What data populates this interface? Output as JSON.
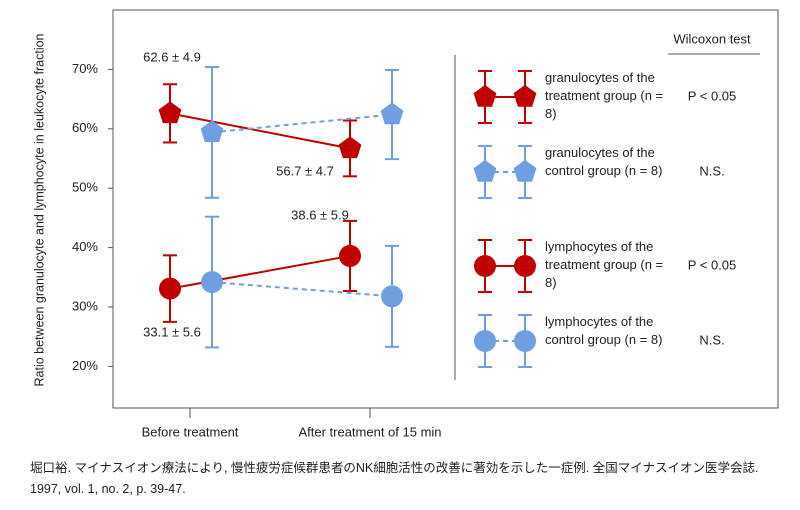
{
  "chart_data": {
    "type": "line",
    "ylabel": "Ratio between granulocyte and lymphocyte in leukocyte fraction",
    "categories": [
      "Before treatment",
      "After treatment of 15 min"
    ],
    "ylim": [
      13,
      80
    ],
    "yticks": [
      {
        "value": 20,
        "label": "20%"
      },
      {
        "value": 30,
        "label": "30%"
      },
      {
        "value": 40,
        "label": "40%"
      },
      {
        "value": 50,
        "label": "50%"
      },
      {
        "value": 60,
        "label": "60%"
      },
      {
        "value": 70,
        "label": "70%"
      }
    ],
    "legend_header": "Wilcoxon test",
    "series": [
      {
        "name": "granulocytes of the treatment group (n = 8)",
        "color": "#c00000",
        "marker": "pentagon",
        "dashed": false,
        "values": [
          62.6,
          56.7
        ],
        "errors": [
          4.9,
          4.7
        ],
        "value_labels": [
          "62.6 ± 4.9",
          "56.7 ± 4.7"
        ],
        "test_result": "P < 0.05"
      },
      {
        "name": "granulocytes of the control group (n = 8)",
        "color": "#6f9fe0",
        "marker": "pentagon",
        "dashed": true,
        "values": [
          59.4,
          62.4
        ],
        "errors": [
          11.0,
          7.5
        ],
        "test_result": "N.S."
      },
      {
        "name": "lymphocytes of the treatment group (n = 8)",
        "color": "#c00000",
        "marker": "circle",
        "dashed": false,
        "values": [
          33.1,
          38.6
        ],
        "errors": [
          5.6,
          5.9
        ],
        "value_labels": [
          "33.1 ± 5.6",
          "38.6 ± 5.9"
        ],
        "test_result": "P < 0.05"
      },
      {
        "name": "lymphocytes of the control group (n = 8)",
        "color": "#6f9fe0",
        "marker": "circle",
        "dashed": true,
        "values": [
          34.2,
          31.8
        ],
        "errors": [
          11.0,
          8.5
        ],
        "test_result": "N.S."
      }
    ]
  },
  "source": "堀口裕. マイナスイオン療法により, 慢性疲労症候群患者のNK細胞活性の改善に著効を示した一症例. 全国マイナスイオン医学会誌. 1997, vol. 1, no. 2, p. 39-47."
}
